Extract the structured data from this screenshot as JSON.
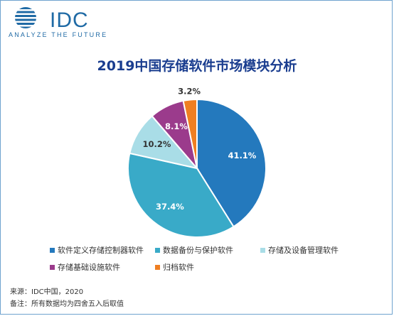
{
  "logo": {
    "word": "IDC",
    "tagline": "ANALYZE THE FUTURE"
  },
  "colors": {
    "brand": "#1f6aa5",
    "title": "#1a3d8f"
  },
  "chart_data": {
    "type": "pie",
    "title": "2019中国存储软件市场模块分析",
    "slices": [
      {
        "label": "软件定义存储控制器软件",
        "value": 41.1,
        "value_label": "41.1%",
        "color": "#2479bd"
      },
      {
        "label": "数据备份与保护软件",
        "value": 37.4,
        "value_label": "37.4%",
        "color": "#39aac8"
      },
      {
        "label": "存储及设备管理软件",
        "value": 10.2,
        "value_label": "10.2%",
        "color": "#a9dde7"
      },
      {
        "label": "存储基础设施软件",
        "value": 8.1,
        "value_label": "8.1%",
        "color": "#9b3b8c"
      },
      {
        "label": "归档软件",
        "value": 3.2,
        "value_label": "3.2%",
        "color": "#ef7f22"
      }
    ],
    "legend_position": "bottom"
  },
  "footer": {
    "source": "来源：IDC中国，2020",
    "note": "备注：所有数据均为四舍五入后取值"
  }
}
